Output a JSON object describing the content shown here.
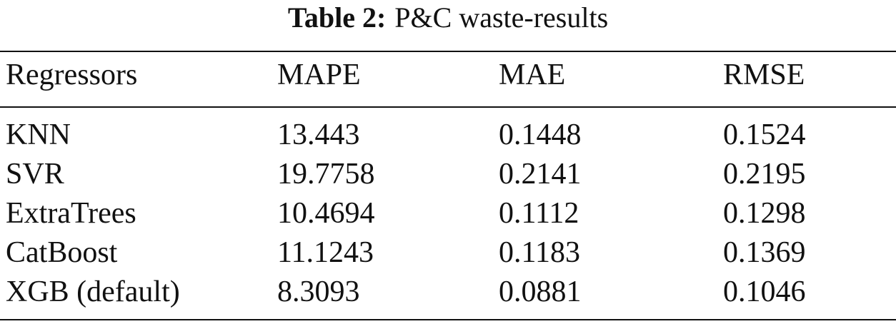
{
  "caption": {
    "label": "Table 2:",
    "text": "P&C waste-results"
  },
  "table": {
    "header": [
      "Regressors",
      "MAPE",
      "MAE",
      "RMSE"
    ],
    "rows": [
      [
        "KNN",
        13.443,
        0.1448,
        0.1524
      ],
      [
        "SVR",
        19.7758,
        0.2141,
        0.2195
      ],
      [
        "ExtraTrees",
        10.4694,
        0.1112,
        0.1298
      ],
      [
        "CatBoost",
        11.1243,
        0.1183,
        0.1369
      ],
      [
        "XGB (default)",
        8.3093,
        0.0881,
        0.1046
      ]
    ]
  }
}
